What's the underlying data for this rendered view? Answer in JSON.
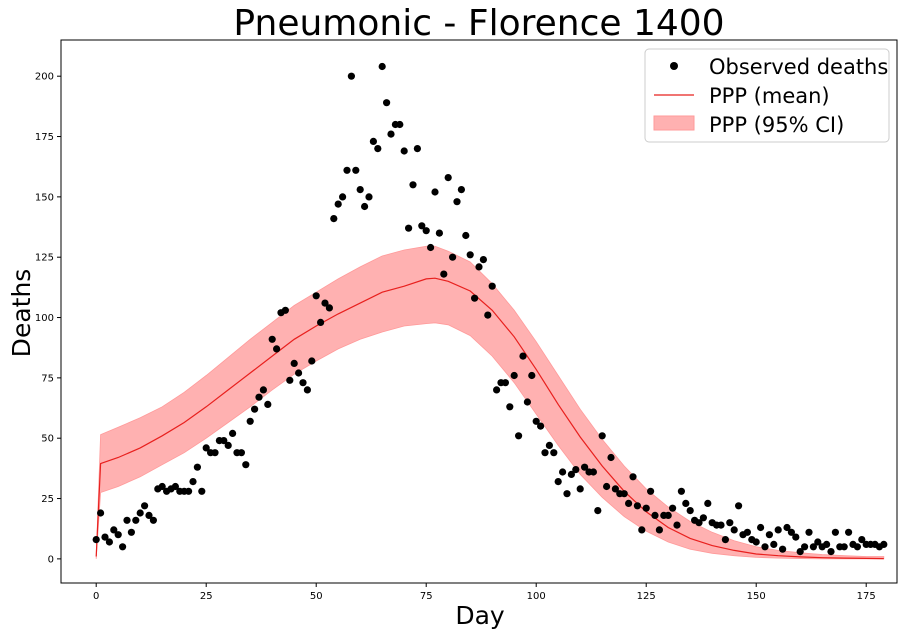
{
  "chart_data": {
    "type": "scatter",
    "title": "Pneumonic - Florence 1400",
    "xlabel": "Day",
    "ylabel": "Deaths",
    "xlim": [
      -8,
      182
    ],
    "ylim": [
      -10,
      215
    ],
    "xticks": [
      0,
      25,
      50,
      75,
      100,
      125,
      150,
      175
    ],
    "yticks": [
      0,
      25,
      50,
      75,
      100,
      125,
      150,
      175,
      200
    ],
    "grid": false,
    "legend_placement": "top-right",
    "legend": {
      "observed": "Observed deaths",
      "mean": "PPP (mean)",
      "ci": "PPP (95% CI)"
    },
    "colors": {
      "observed": "#000000",
      "mean": "#e8201e",
      "ci_fill": "#ffb1b1",
      "ci_edge": "#ff9a9a"
    },
    "series": [
      {
        "name": "Observed deaths",
        "kind": "scatter",
        "x": [
          0,
          1,
          2,
          3,
          4,
          5,
          6,
          7,
          8,
          9,
          10,
          11,
          12,
          13,
          14,
          15,
          16,
          17,
          18,
          19,
          20,
          21,
          22,
          23,
          24,
          25,
          26,
          27,
          28,
          29,
          30,
          31,
          32,
          33,
          34,
          35,
          36,
          37,
          38,
          39,
          40,
          41,
          42,
          43,
          44,
          45,
          46,
          47,
          48,
          49,
          50,
          51,
          52,
          53,
          54,
          55,
          56,
          57,
          58,
          59,
          60,
          61,
          62,
          63,
          64,
          65,
          66,
          67,
          68,
          69,
          70,
          71,
          72,
          73,
          74,
          75,
          76,
          77,
          78,
          79,
          80,
          81,
          82,
          83,
          84,
          85,
          86,
          87,
          88,
          89,
          90,
          91,
          92,
          93,
          94,
          95,
          96,
          97,
          98,
          99,
          100,
          101,
          102,
          103,
          104,
          105,
          106,
          107,
          108,
          109,
          110,
          111,
          112,
          113,
          114,
          115,
          116,
          117,
          118,
          119,
          120,
          121,
          122,
          123,
          124,
          125,
          126,
          127,
          128,
          129,
          130,
          131,
          132,
          133,
          134,
          135,
          136,
          137,
          138,
          139,
          140,
          141,
          142,
          143,
          144,
          145,
          146,
          147,
          148,
          149,
          150,
          151,
          152,
          153,
          154,
          155,
          156,
          157,
          158,
          159,
          160,
          161,
          162,
          163,
          164,
          165,
          166,
          167,
          168,
          169,
          170,
          171,
          172,
          173,
          174,
          175,
          176,
          177,
          178,
          179
        ],
        "y": [
          8,
          19,
          9,
          7,
          12,
          10,
          5,
          16,
          11,
          16,
          19,
          22,
          18,
          16,
          29,
          30,
          28,
          29,
          30,
          28,
          28,
          28,
          32,
          38,
          28,
          46,
          44,
          44,
          49,
          49,
          47,
          52,
          44,
          44,
          39,
          57,
          62,
          67,
          70,
          64,
          91,
          87,
          102,
          103,
          74,
          81,
          77,
          73,
          70,
          82,
          109,
          98,
          106,
          104,
          141,
          147,
          150,
          161,
          200,
          161,
          153,
          146,
          150,
          173,
          170,
          204,
          189,
          176,
          180,
          180,
          169,
          137,
          155,
          170,
          138,
          136,
          129,
          152,
          135,
          118,
          158,
          125,
          148,
          153,
          134,
          126,
          108,
          121,
          124,
          101,
          113,
          70,
          73,
          73,
          63,
          76,
          51,
          84,
          65,
          76,
          57,
          55,
          44,
          47,
          44,
          32,
          36,
          27,
          35,
          37,
          29,
          38,
          36,
          36,
          20,
          51,
          30,
          42,
          29,
          27,
          27,
          23,
          34,
          22,
          12,
          21,
          28,
          18,
          12,
          18,
          18,
          21,
          14,
          28,
          23,
          20,
          16,
          15,
          17,
          23,
          15,
          14,
          14,
          8,
          15,
          12,
          22,
          10,
          11,
          8,
          7,
          13,
          5,
          10,
          6,
          12,
          4,
          13,
          11,
          9,
          3,
          5,
          11,
          5,
          7,
          5,
          6,
          3,
          11,
          5,
          5,
          11,
          6,
          5,
          8,
          6,
          6,
          6,
          5,
          6
        ]
      },
      {
        "name": "PPP (mean)",
        "kind": "line",
        "x": [
          0,
          1,
          5,
          10,
          15,
          20,
          25,
          30,
          35,
          40,
          45,
          50,
          55,
          60,
          65,
          70,
          75,
          77,
          80,
          85,
          90,
          95,
          100,
          105,
          110,
          115,
          120,
          125,
          130,
          135,
          140,
          145,
          150,
          155,
          160,
          165,
          170,
          175,
          179
        ],
        "y": [
          1,
          39.5,
          42,
          46,
          51,
          56.5,
          63,
          70,
          77,
          84,
          91,
          96.5,
          101.5,
          106,
          110.5,
          113,
          116,
          116.3,
          115,
          111,
          103,
          92,
          78.5,
          64,
          50.5,
          38.5,
          28,
          19.5,
          13,
          8.5,
          5.5,
          3.5,
          2,
          1.3,
          0.8,
          0.5,
          0.3,
          0.2,
          0.1
        ]
      },
      {
        "name": "PPP (95% CI)",
        "kind": "band",
        "x": [
          0,
          1,
          5,
          10,
          15,
          20,
          25,
          30,
          35,
          40,
          45,
          50,
          55,
          60,
          65,
          70,
          75,
          77,
          80,
          85,
          90,
          95,
          100,
          105,
          110,
          115,
          120,
          125,
          130,
          135,
          140,
          145,
          150,
          155,
          160,
          165,
          170,
          175,
          179
        ],
        "lower": [
          0,
          27.5,
          30,
          34,
          39,
          44,
          50,
          56.5,
          63,
          70,
          76.5,
          82,
          87,
          91,
          94,
          96.5,
          97.5,
          97.8,
          97,
          92.5,
          84,
          73,
          60,
          47,
          35,
          25.5,
          17.5,
          11.5,
          7,
          4,
          2.3,
          1.3,
          0.6,
          0.3,
          0.1,
          0,
          0,
          0,
          0
        ],
        "upper": [
          1,
          51.5,
          54.5,
          58.5,
          63,
          69,
          76,
          83.5,
          91,
          98,
          105,
          110.5,
          116,
          121,
          125.5,
          128,
          129.5,
          129.5,
          127.5,
          123,
          114,
          103,
          90,
          76,
          62,
          49.5,
          38.5,
          29,
          21.5,
          15.5,
          11,
          7.5,
          5,
          3.5,
          2.5,
          1.8,
          1.3,
          1,
          1
        ]
      }
    ]
  }
}
